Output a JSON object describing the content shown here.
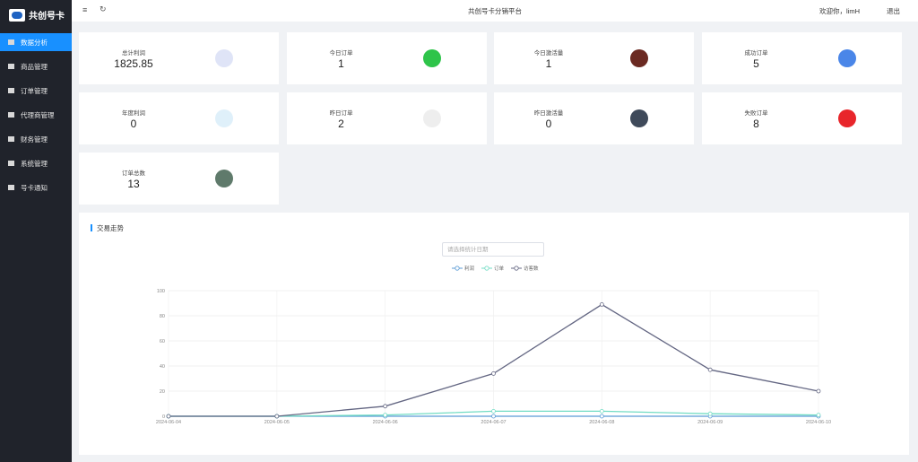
{
  "brand": "共创号卡",
  "menu": [
    "数据分析",
    "商品管理",
    "订单管理",
    "代理商管理",
    "财务管理",
    "系统管理",
    "号卡通知"
  ],
  "header": {
    "title": "共创号卡分销平台",
    "user": "欢迎你，limH",
    "logout": "退出"
  },
  "stats": [
    {
      "label": "总计利润",
      "value": "1825.85"
    },
    {
      "label": "今日订单",
      "value": "1"
    },
    {
      "label": "今日激活量",
      "value": "1"
    },
    {
      "label": "成功订单",
      "value": "5"
    },
    {
      "label": "年度利润",
      "value": "0"
    },
    {
      "label": "昨日订单",
      "value": "2"
    },
    {
      "label": "昨日激活量",
      "value": "0"
    },
    {
      "label": "失败订单",
      "value": "8"
    },
    {
      "label": "订单总数",
      "value": "13"
    }
  ],
  "panel": {
    "title": "交易走势",
    "date_placeholder": "请选择统计日期"
  },
  "chart_data": {
    "type": "line",
    "categories": [
      "2024-06-04",
      "2024-06-05",
      "2024-06-06",
      "2024-06-07",
      "2024-06-08",
      "2024-06-09",
      "2024-06-10"
    ],
    "series": [
      {
        "name": "利润",
        "color": "#5b9bd5",
        "values": [
          0,
          0,
          0,
          0,
          0,
          0,
          0
        ]
      },
      {
        "name": "订单",
        "color": "#72dcc4",
        "values": [
          0,
          0,
          1,
          4,
          4,
          2,
          1
        ]
      },
      {
        "name": "访客数",
        "color": "#646783",
        "values": [
          0,
          0,
          8,
          34,
          89,
          37,
          20
        ]
      }
    ],
    "ylim": [
      0,
      100
    ],
    "yticks": [
      0,
      20,
      40,
      60,
      80,
      100
    ],
    "grid": true
  }
}
